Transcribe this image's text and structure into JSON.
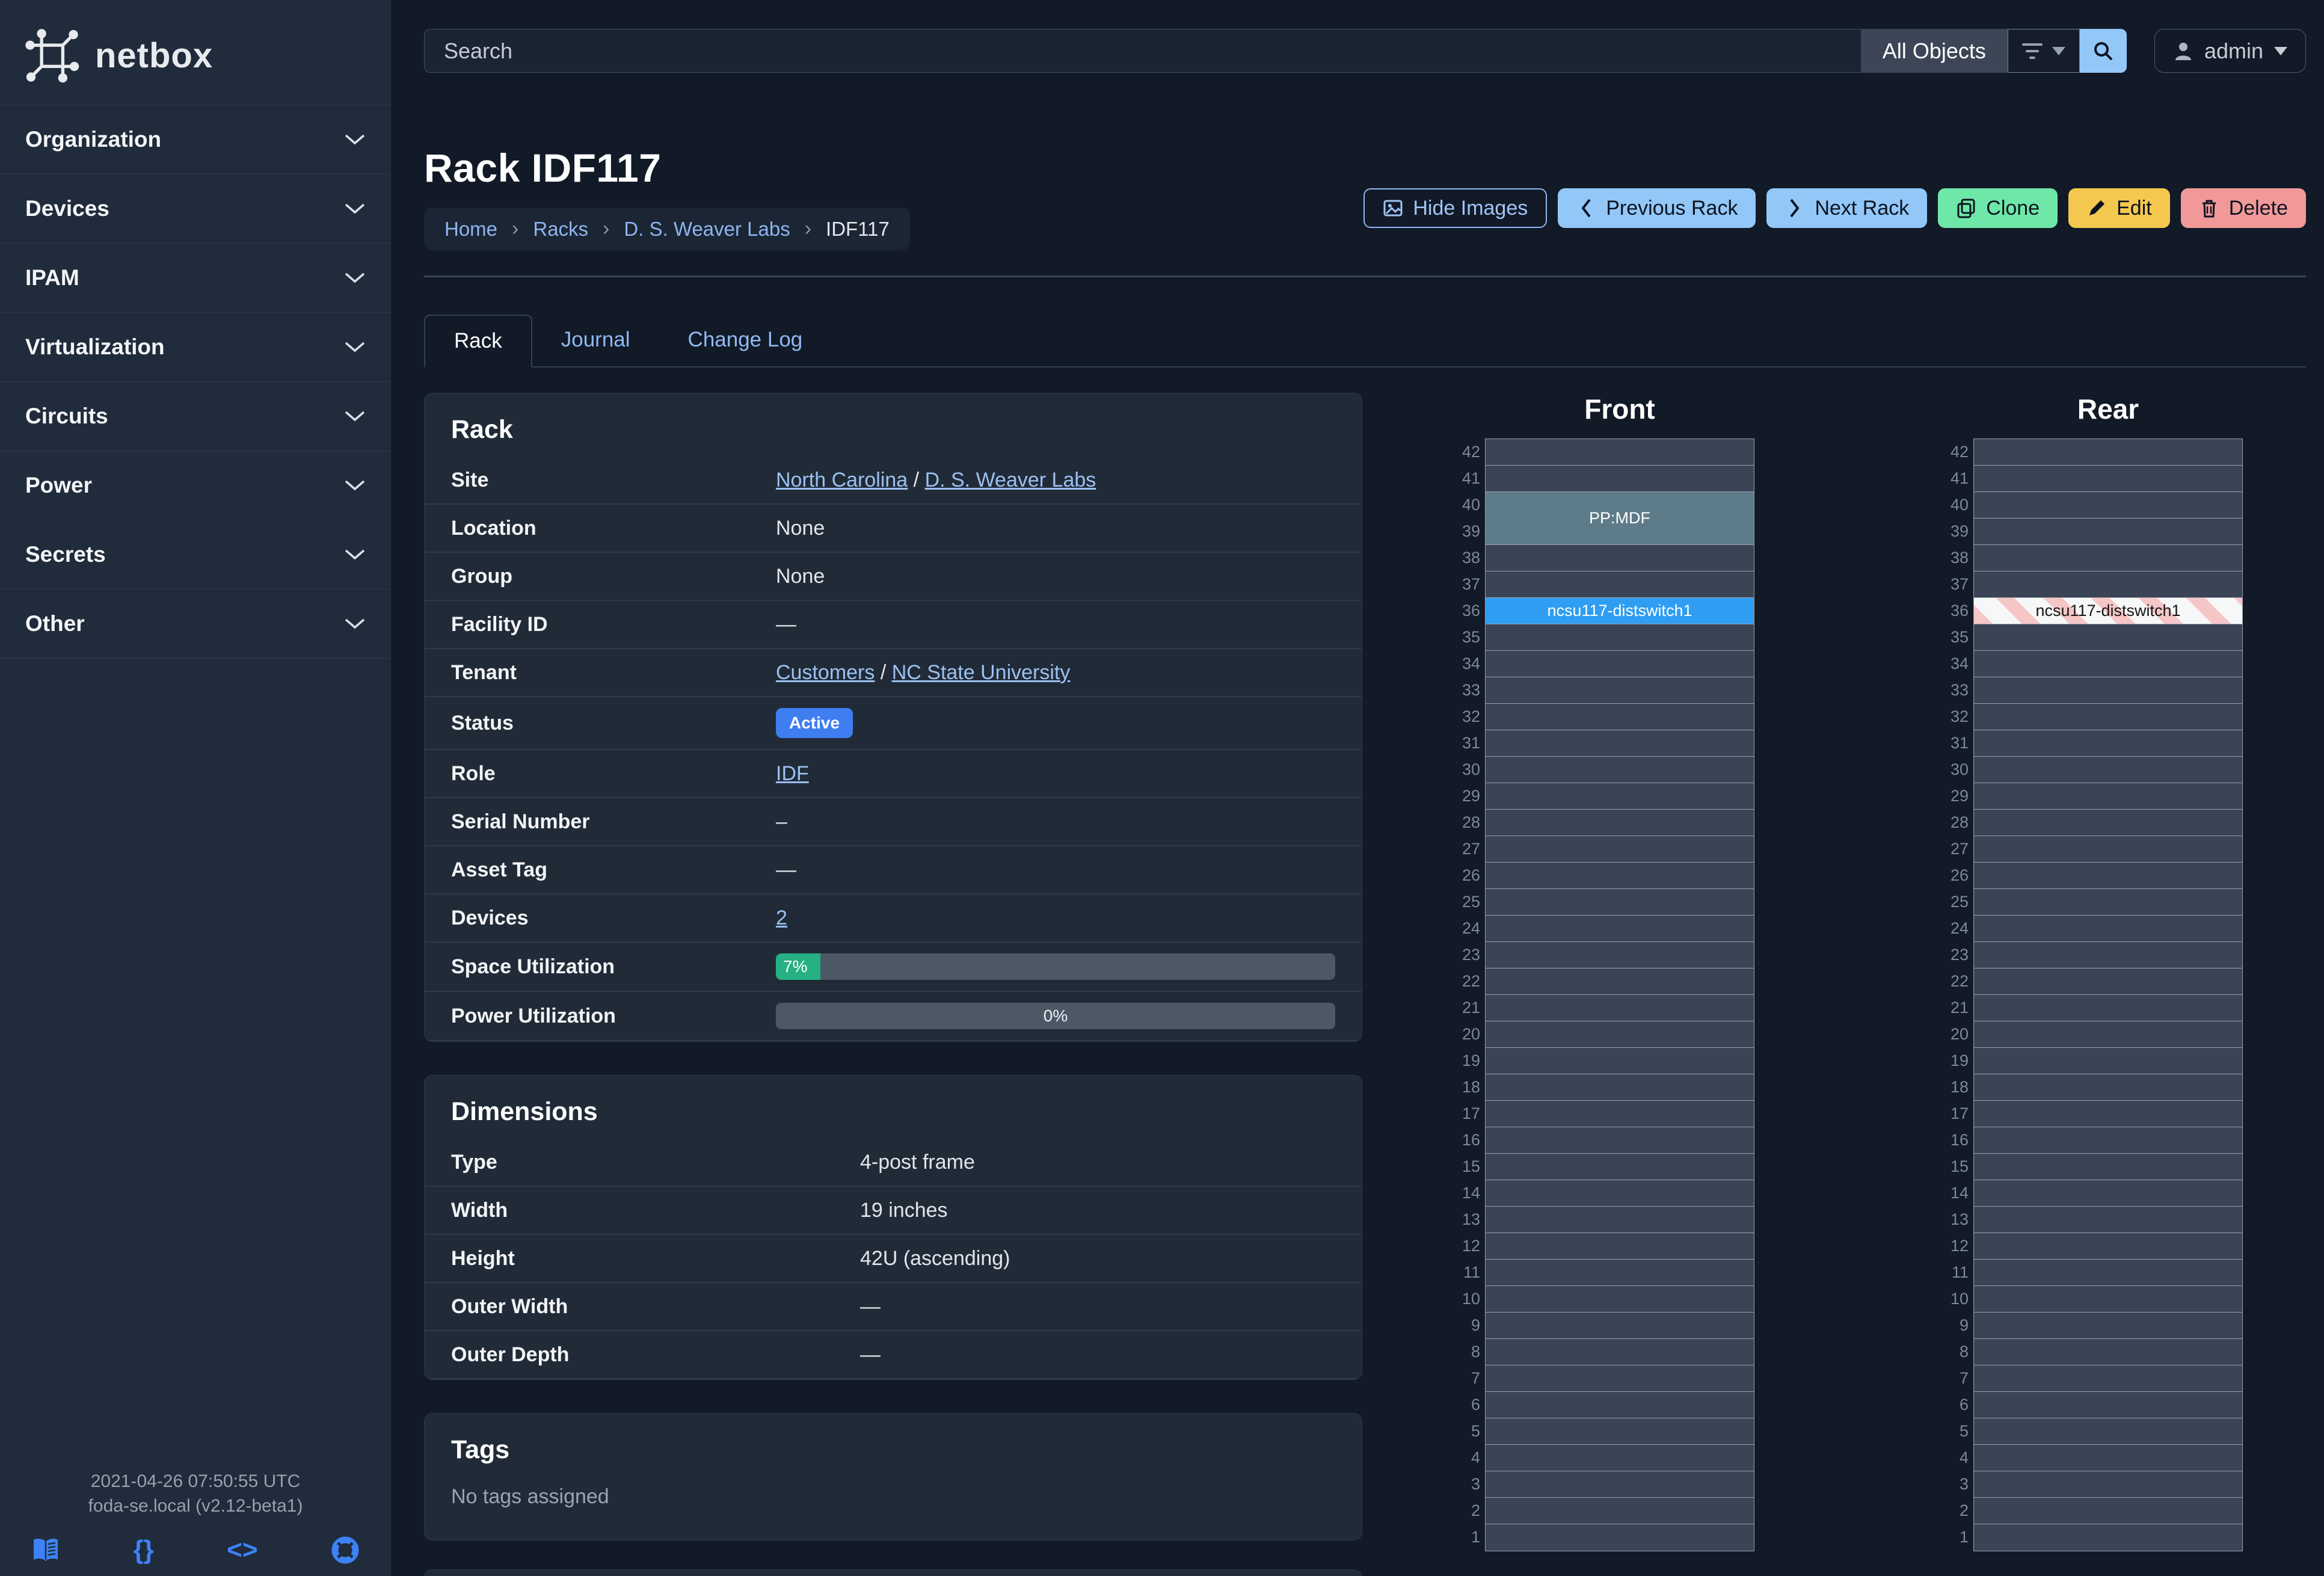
{
  "app": {
    "name": "netbox"
  },
  "topbar": {
    "search_placeholder": "Search",
    "scope_label": "All Objects",
    "user_label": "admin"
  },
  "sidebar": {
    "items": [
      {
        "label": "Organization"
      },
      {
        "label": "Devices"
      },
      {
        "label": "IPAM"
      },
      {
        "label": "Virtualization"
      },
      {
        "label": "Circuits"
      },
      {
        "label": "Power"
      },
      {
        "label": "Secrets"
      },
      {
        "label": "Other"
      }
    ],
    "footer": {
      "timestamp": "2021-04-26 07:50:55 UTC",
      "host_version": "foda-se.local (v2.12-beta1)",
      "icons": [
        "docs-book-icon",
        "rest-api-braces-icon",
        "source-code-icon",
        "help-lifebuoy-icon"
      ]
    }
  },
  "page": {
    "title": "Rack IDF117",
    "breadcrumb": [
      "Home",
      "Racks",
      "D. S. Weaver Labs",
      "IDF117"
    ],
    "actions": [
      {
        "key": "hide-images",
        "label": "Hide Images",
        "style": "outline",
        "bg": "",
        "fg": "#9fc5f5"
      },
      {
        "key": "previous-rack",
        "label": "Previous Rack",
        "style": "solid",
        "bg": "#92c7f8",
        "fg": "#0c1320"
      },
      {
        "key": "next-rack",
        "label": "Next Rack",
        "style": "solid",
        "bg": "#92c7f8",
        "fg": "#0c1320"
      },
      {
        "key": "clone",
        "label": "Clone",
        "style": "solid",
        "bg": "#6ee7a8",
        "fg": "#0c1320"
      },
      {
        "key": "edit",
        "label": "Edit",
        "style": "solid",
        "bg": "#f4c84f",
        "fg": "#0c1320"
      },
      {
        "key": "delete",
        "label": "Delete",
        "style": "solid",
        "bg": "#f19999",
        "fg": "#0c1320"
      }
    ],
    "tabs": [
      {
        "label": "Rack",
        "active": true
      },
      {
        "label": "Journal",
        "active": false
      },
      {
        "label": "Change Log",
        "active": false
      }
    ]
  },
  "panels": [
    {
      "id": "rack",
      "title": "Rack",
      "label_width": 540,
      "rows": [
        {
          "label": "Site",
          "type": "links",
          "parts": [
            {
              "t": "North Carolina",
              "link": true
            },
            {
              "t": " / "
            },
            {
              "t": "D. S. Weaver Labs",
              "link": true
            }
          ]
        },
        {
          "label": "Location",
          "type": "muted",
          "value": "None"
        },
        {
          "label": "Group",
          "type": "muted",
          "value": "None"
        },
        {
          "label": "Facility ID",
          "type": "muted",
          "value": "—"
        },
        {
          "label": "Tenant",
          "type": "links",
          "parts": [
            {
              "t": "Customers",
              "link": true
            },
            {
              "t": " / "
            },
            {
              "t": "NC State University",
              "link": true
            }
          ]
        },
        {
          "label": "Status",
          "type": "badge",
          "value": "Active",
          "badge_color": "#3f7ef0"
        },
        {
          "label": "Role",
          "type": "links",
          "parts": [
            {
              "t": "IDF",
              "link": true
            }
          ]
        },
        {
          "label": "Serial Number",
          "type": "muted",
          "value": "–"
        },
        {
          "label": "Asset Tag",
          "type": "muted",
          "value": "—"
        },
        {
          "label": "Devices",
          "type": "links",
          "parts": [
            {
              "t": "2",
              "link": true
            }
          ]
        },
        {
          "label": "Space Utilization",
          "type": "progress",
          "percent": 7,
          "display": "7%",
          "fill_color": "#25b183"
        },
        {
          "label": "Power Utilization",
          "type": "progress",
          "percent": 0,
          "display": "0%",
          "fill_color": "#25b183"
        }
      ]
    },
    {
      "id": "dimensions",
      "title": "Dimensions",
      "label_width": 680,
      "rows": [
        {
          "label": "Type",
          "type": "text",
          "value": "4-post frame"
        },
        {
          "label": "Width",
          "type": "text",
          "value": "19 inches"
        },
        {
          "label": "Height",
          "type": "text",
          "value": "42U (ascending)"
        },
        {
          "label": "Outer Width",
          "type": "muted",
          "value": "—"
        },
        {
          "label": "Outer Depth",
          "type": "muted",
          "value": "—"
        }
      ]
    },
    {
      "id": "tags",
      "title": "Tags",
      "empty_text": "No tags assigned",
      "rows": []
    }
  ],
  "elevations": {
    "unit_count": 42,
    "front": {
      "title": "Front",
      "devices": [
        {
          "name": "PP:MDF",
          "unit_start": 39,
          "unit_end": 40,
          "bg": "#5e7b89",
          "text_color": "#ffffff"
        },
        {
          "name": "ncsu117-distswitch1",
          "unit_start": 36,
          "unit_end": 36,
          "bg": "#2e9df2",
          "text_color": "#ffffff"
        }
      ]
    },
    "rear": {
      "title": "Rear",
      "devices": [
        {
          "name": "ncsu117-distswitch1",
          "unit_start": 36,
          "unit_end": 36,
          "pattern": "stripes",
          "text_color": "#151515"
        }
      ]
    }
  },
  "colors": {
    "page_bg": "#121a27",
    "sidebar_bg": "#202b3b",
    "panel_bg": "#212b38",
    "link": "#9cc1f0",
    "active_badge": "#3f7ef0",
    "progress_green": "#25b183",
    "rack_empty_unit": "#3b4454",
    "rack_border": "#96a0ac",
    "front_device_blue": "#2e9df2",
    "front_patch_panel": "#5e7b89",
    "footer_icon_blue": "#3d82f6"
  }
}
